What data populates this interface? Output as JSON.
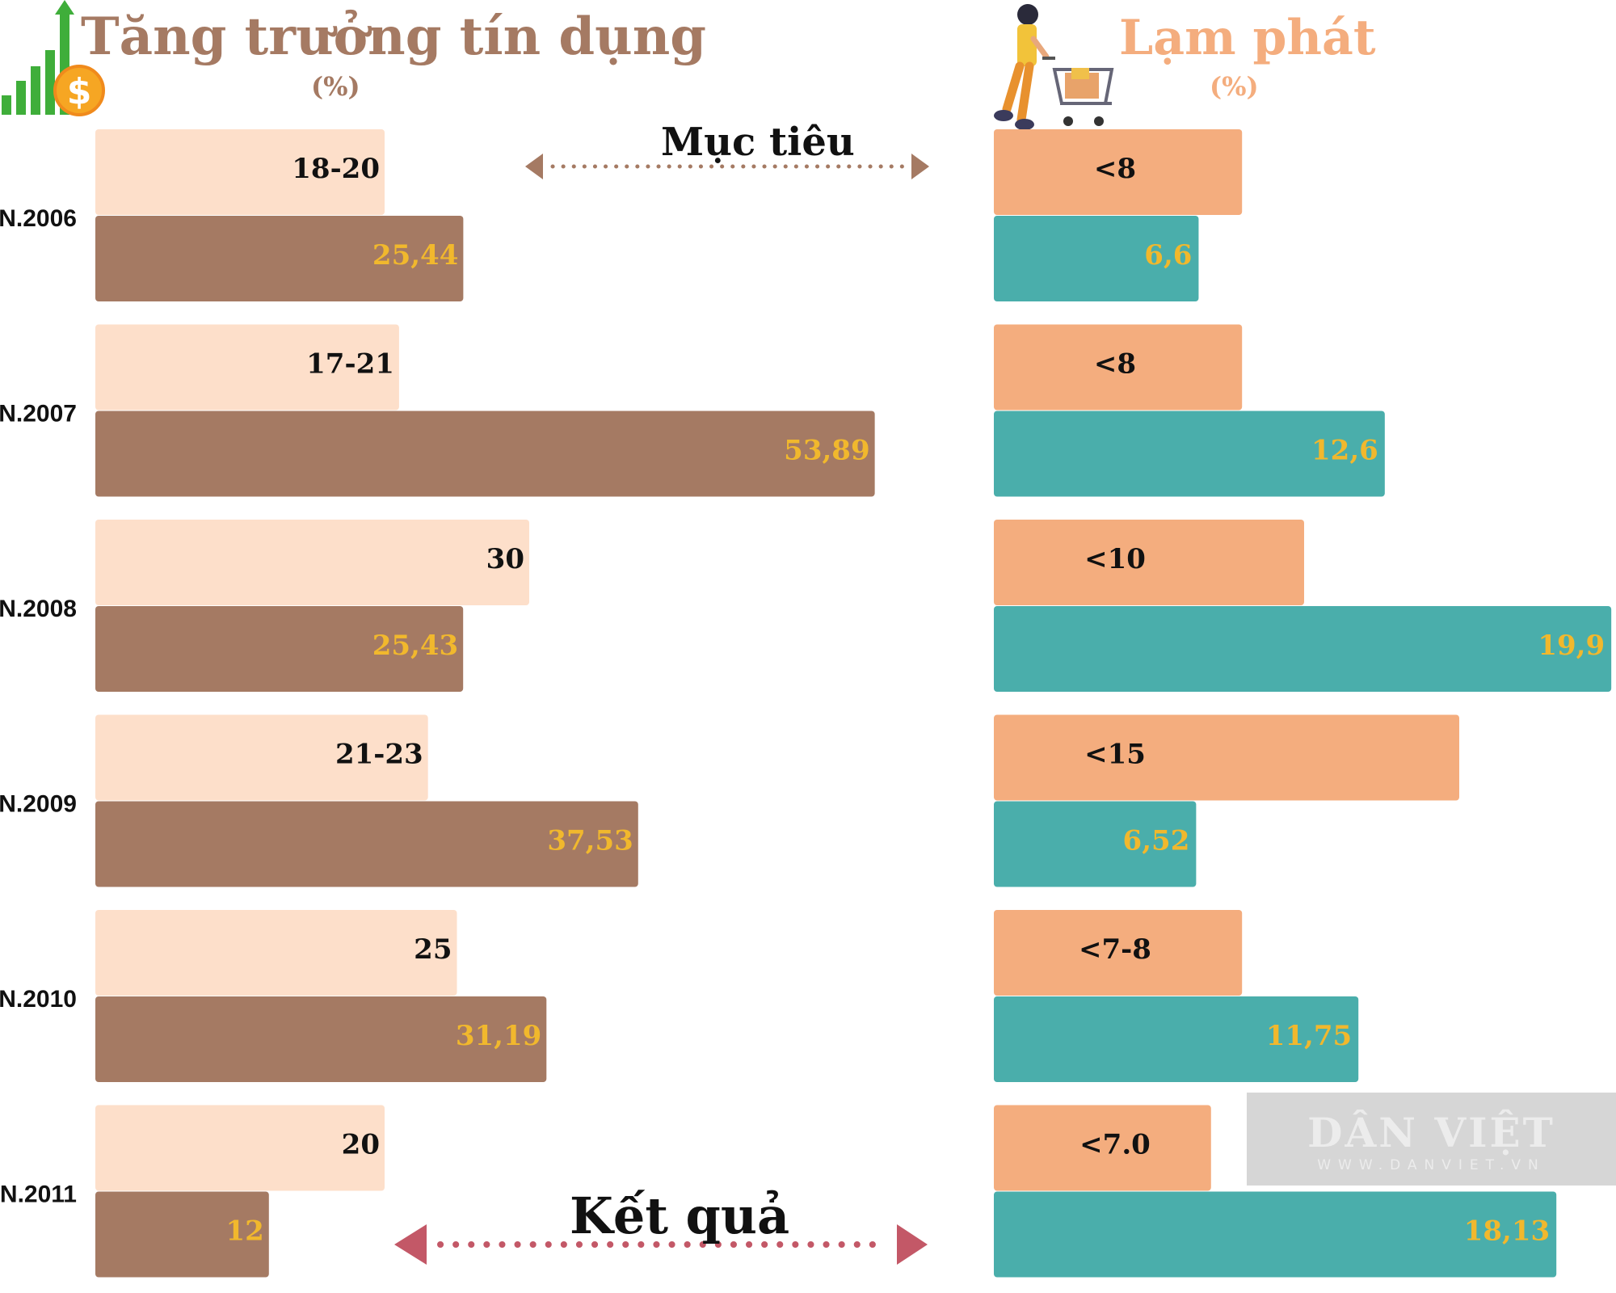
{
  "titles": {
    "left": "Tăng trưởng tín dụng",
    "left_unit": "(%)",
    "right": "Lạm phát",
    "right_unit": "(%)"
  },
  "legend": {
    "target": "Mục tiêu",
    "result": "Kết quả"
  },
  "watermark": {
    "main": "DÂN VIỆT",
    "sub": "WWW.DANVIET.VN"
  },
  "colors": {
    "credit_target": "#fddfca",
    "credit_result": "#a57a63",
    "inflation_target": "#f4ad7e",
    "inflation_result": "#4aaeab",
    "result_label": "#f1b82d",
    "target_label": "#111111",
    "arrow_top": "#a57a63",
    "arrow_bottom": "#c35867"
  },
  "icons": [
    "growth-chart-dollar-icon",
    "shopping-cart-person-icon"
  ],
  "chart_data": [
    {
      "type": "bar",
      "orientation": "horizontal",
      "title": "Tăng trưởng tín dụng",
      "unit": "(%)",
      "categories": [
        "N.2006",
        "N.2007",
        "N.2008",
        "N.2009",
        "N.2010",
        "N.2011"
      ],
      "series": [
        {
          "name": "Mục tiêu",
          "labels": [
            "18-20",
            "17-21",
            "30",
            "21-23",
            "25",
            "20"
          ],
          "values": [
            20,
            21,
            30,
            23,
            25,
            20
          ]
        },
        {
          "name": "Kết quả",
          "labels": [
            "25,44",
            "53,89",
            "25,43",
            "37,53",
            "31,19",
            "12"
          ],
          "values": [
            25.44,
            53.89,
            25.43,
            37.53,
            31.19,
            12
          ]
        }
      ]
    },
    {
      "type": "bar",
      "orientation": "horizontal",
      "title": "Lạm phát",
      "unit": "(%)",
      "categories": [
        "N.2006",
        "N.2007",
        "N.2008",
        "N.2009",
        "N.2010",
        "N.2011"
      ],
      "series": [
        {
          "name": "Mục tiêu",
          "labels": [
            "<8",
            "<8",
            "<10",
            "<15",
            "<7-8",
            "<7.0"
          ],
          "values": [
            8,
            8,
            10,
            15,
            8,
            7
          ]
        },
        {
          "name": "Kết quả",
          "labels": [
            "6,6",
            "12,6",
            "19,9",
            "6,52",
            "11,75",
            "18,13"
          ],
          "values": [
            6.6,
            12.6,
            19.9,
            6.52,
            11.75,
            18.13
          ]
        }
      ]
    }
  ]
}
